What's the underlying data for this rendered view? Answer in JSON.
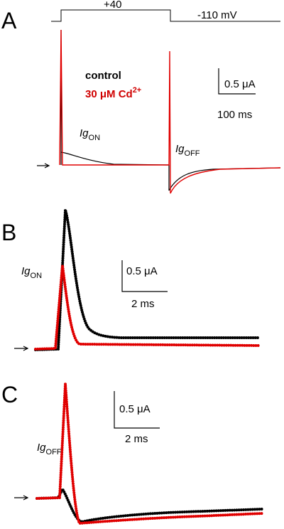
{
  "panels": [
    {
      "label": "A",
      "protocol": {
        "step": "+40",
        "hold": "-110 mV"
      },
      "legend": [
        {
          "text": "control"
        },
        {
          "text": "30 μM Cd",
          "sup": "2+"
        }
      ],
      "scale": {
        "y": "0.5 μA",
        "x": "100 ms"
      },
      "annotations": [
        {
          "main": "Ig",
          "sub": "ON"
        },
        {
          "main": "Ig",
          "sub": "OFF"
        }
      ]
    },
    {
      "label": "B",
      "scale": {
        "y": "0.5 μA",
        "x": "2 ms"
      },
      "annotations": [
        {
          "main": "Ig",
          "sub": "ON"
        }
      ]
    },
    {
      "label": "C",
      "scale": {
        "y": "0.5 μA",
        "x": "2 ms"
      },
      "annotations": [
        {
          "main": "Ig",
          "sub": "OFF"
        }
      ]
    }
  ]
}
